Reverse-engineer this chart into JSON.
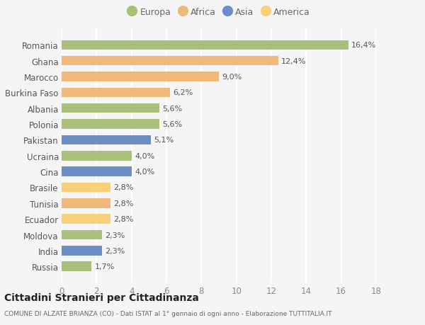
{
  "categories": [
    "Romania",
    "Ghana",
    "Marocco",
    "Burkina Faso",
    "Albania",
    "Polonia",
    "Pakistan",
    "Ucraina",
    "Cina",
    "Brasile",
    "Tunisia",
    "Ecuador",
    "Moldova",
    "India",
    "Russia"
  ],
  "values": [
    16.4,
    12.4,
    9.0,
    6.2,
    5.6,
    5.6,
    5.1,
    4.0,
    4.0,
    2.8,
    2.8,
    2.8,
    2.3,
    2.3,
    1.7
  ],
  "labels": [
    "16,4%",
    "12,4%",
    "9,0%",
    "6,2%",
    "5,6%",
    "5,6%",
    "5,1%",
    "4,0%",
    "4,0%",
    "2,8%",
    "2,8%",
    "2,8%",
    "2,3%",
    "2,3%",
    "1,7%"
  ],
  "continents": [
    "Europa",
    "Africa",
    "Africa",
    "Africa",
    "Europa",
    "Europa",
    "Asia",
    "Europa",
    "Asia",
    "America",
    "Africa",
    "America",
    "Europa",
    "Asia",
    "Europa"
  ],
  "colors": {
    "Europa": "#a8c07a",
    "Africa": "#f0b87a",
    "Asia": "#6b8fc4",
    "America": "#f7d07a"
  },
  "legend_order": [
    "Europa",
    "Africa",
    "Asia",
    "America"
  ],
  "title": "Cittadini Stranieri per Cittadinanza",
  "subtitle": "COMUNE DI ALZATE BRIANZA (CO) - Dati ISTAT al 1° gennaio di ogni anno - Elaborazione TUTTITALIA.IT",
  "xlim": [
    0,
    18
  ],
  "xticks": [
    0,
    2,
    4,
    6,
    8,
    10,
    12,
    14,
    16,
    18
  ],
  "background_color": "#f5f5f5",
  "grid_color": "#ffffff",
  "bar_height": 0.6
}
